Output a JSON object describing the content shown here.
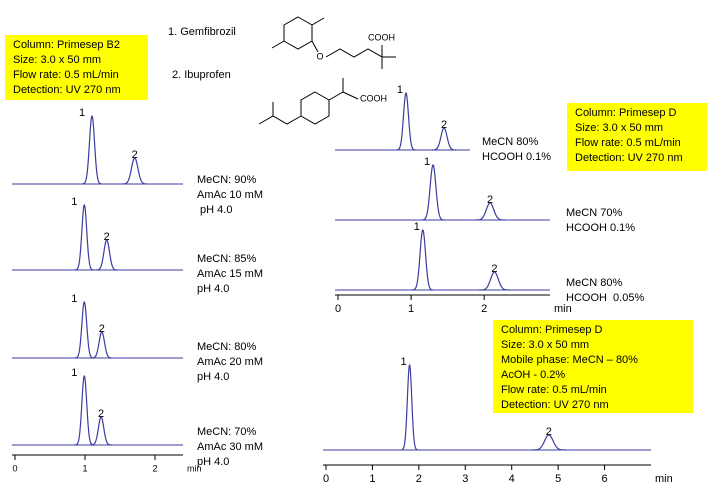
{
  "structures": {
    "compound_1": "1. Gemfibrozil",
    "compound_2": "2. Ibuprofen",
    "acid_1": "COOH",
    "ether_o": "O",
    "acid_2": "COOH"
  },
  "chart_data": [
    {
      "type": "chromatogram",
      "x_label": "min",
      "xlim": [
        0,
        2.4
      ],
      "xticks": [
        0,
        1,
        2
      ],
      "color": "#3c3ca0",
      "info": [
        "Column: Primesep B2",
        "Size: 3.0 x 50 mm",
        "Flow rate: 0.5 mL/min",
        "Detection: UV 270 nm"
      ],
      "traces": [
        {
          "conditions": [
            "MeCN: 90%",
            "AmAc 10 mM",
            " pH 4.0"
          ],
          "peaks": [
            {
              "label": "1",
              "time": 1.1,
              "height": 68
            },
            {
              "label": "2",
              "time": 1.71,
              "height": 26
            }
          ]
        },
        {
          "conditions": [
            "MeCN: 85%",
            "AmAc 15 mM",
            "pH 4.0"
          ],
          "peaks": [
            {
              "label": "1",
              "time": 0.99,
              "height": 65
            },
            {
              "label": "2",
              "time": 1.31,
              "height": 30
            }
          ]
        },
        {
          "conditions": [
            "MeCN: 80%",
            "AmAc 20 mM",
            "pH 4.0"
          ],
          "peaks": [
            {
              "label": "1",
              "time": 0.99,
              "height": 56
            },
            {
              "label": "2",
              "time": 1.24,
              "height": 26
            }
          ]
        },
        {
          "conditions": [
            "MeCN: 70%",
            "AmAc 30 mM",
            "pH 4.0"
          ],
          "peaks": [
            {
              "label": "1",
              "time": 0.99,
              "height": 69
            },
            {
              "label": "2",
              "time": 1.23,
              "height": 28
            }
          ]
        }
      ]
    },
    {
      "type": "chromatogram",
      "x_label": "min",
      "xlim": [
        0,
        2.9
      ],
      "xticks": [
        0,
        1,
        2
      ],
      "color": "#3c3ca0",
      "info": [
        "Column: Primesep D",
        "Size: 3.0 x 50 mm",
        "Flow rate: 0.5 mL/min",
        "Detection: UV 270 nm"
      ],
      "traces": [
        {
          "conditions": [
            "MeCN 80%",
            "HCOOH 0.1%"
          ],
          "peaks": [
            {
              "label": "1",
              "time": 0.93,
              "height": 57
            },
            {
              "label": "2",
              "time": 1.45,
              "height": 22
            }
          ]
        },
        {
          "conditions": [
            "MeCN 70%",
            "HCOOH 0.1%"
          ],
          "peaks": [
            {
              "label": "1",
              "time": 1.3,
              "height": 55
            },
            {
              "label": "2",
              "time": 2.08,
              "height": 17
            }
          ]
        },
        {
          "conditions": [
            "MeCN 80%",
            "HCOOH  0.05%"
          ],
          "peaks": [
            {
              "label": "1",
              "time": 1.16,
              "height": 60
            },
            {
              "label": "2",
              "time": 2.14,
              "height": 18
            }
          ]
        }
      ]
    },
    {
      "type": "chromatogram",
      "x_label": "min",
      "xlim": [
        0,
        7
      ],
      "xticks": [
        0,
        1,
        2,
        3,
        4,
        5,
        6
      ],
      "color": "#3c3ca0",
      "info": [
        "Column: Primesep D",
        "Size: 3.0 x 50 mm",
        "Mobile phase: MeCN – 80%",
        "AcOH - 0.2%",
        "Flow rate: 0.5 mL/min",
        "Detection: UV 270 nm"
      ],
      "traces": [
        {
          "conditions": [],
          "peaks": [
            {
              "label": "1",
              "time": 1.8,
              "height": 85
            },
            {
              "label": "2",
              "time": 4.8,
              "height": 15
            }
          ]
        }
      ]
    }
  ]
}
